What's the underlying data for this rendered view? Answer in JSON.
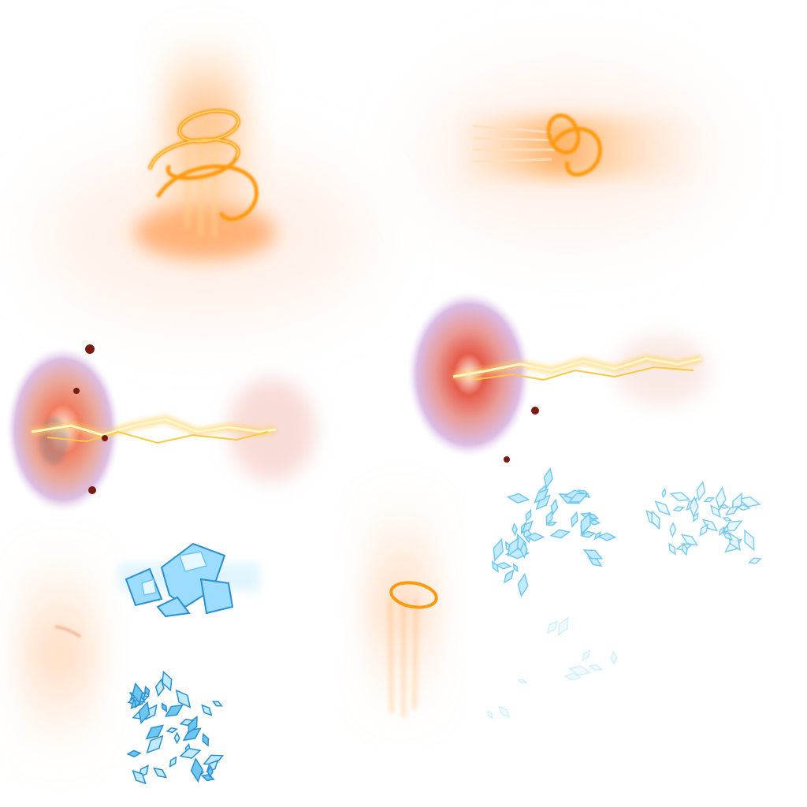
{
  "sprite_sheet": {
    "background": "#ffffff",
    "palette": {
      "fire_core": "#ffb020",
      "fire_glow": "#ff8a30",
      "fire_haze": "#ffd9c0",
      "lightning": "#ffe066",
      "lightning_core": "#fffbe0",
      "portal_purple": "#c9a0d8",
      "portal_red": "#e0503a",
      "ember": "#7a1a10",
      "ice_light": "#bfeaff",
      "ice_mid": "#6cc6f0",
      "ice_dark": "#2a8fd0"
    },
    "sprites": [
      {
        "kind": "fire-swirl-column",
        "icon": "fire-swirl-icon"
      },
      {
        "kind": "fire-swirl-horizontal",
        "icon": "fire-dash-icon"
      },
      {
        "kind": "lightning-beam-portal",
        "icon": "lightning-icon"
      },
      {
        "kind": "lightning-beam-portal-wide",
        "icon": "lightning-icon"
      },
      {
        "kind": "fire-fade-column",
        "icon": "fire-glow-icon"
      },
      {
        "kind": "fire-ring-column",
        "icon": "fire-ring-icon"
      },
      {
        "kind": "ice-crystal-burst",
        "icon": "ice-crystal-icon"
      },
      {
        "kind": "ice-shatter-full",
        "icon": "ice-shard-icon"
      },
      {
        "kind": "ice-shatter-light",
        "icon": "ice-shard-icon"
      },
      {
        "kind": "ice-shatter-fading",
        "icon": "ice-shard-icon"
      },
      {
        "kind": "ice-shards-falling",
        "icon": "ice-shard-icon"
      }
    ]
  }
}
